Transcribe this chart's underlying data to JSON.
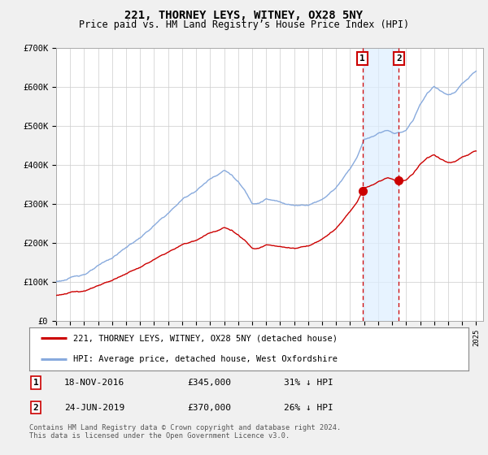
{
  "title": "221, THORNEY LEYS, WITNEY, OX28 5NY",
  "subtitle": "Price paid vs. HM Land Registry’s House Price Index (HPI)",
  "ylim": [
    0,
    700000
  ],
  "yticks": [
    0,
    100000,
    200000,
    300000,
    400000,
    500000,
    600000,
    700000
  ],
  "ytick_labels": [
    "£0",
    "£100K",
    "£200K",
    "£300K",
    "£400K",
    "£500K",
    "£600K",
    "£700K"
  ],
  "xlim_start": 1995.0,
  "xlim_end": 2025.5,
  "line1_color": "#cc0000",
  "line2_color": "#88aadd",
  "vline_color": "#cc0000",
  "shade_color": "#ddeeff",
  "marker1_date": 2016.88,
  "marker2_date": 2019.48,
  "marker1_value": 345000,
  "marker2_value": 370000,
  "sale1_date": "18-NOV-2016",
  "sale1_price": "£345,000",
  "sale1_pct": "31% ↓ HPI",
  "sale2_date": "24-JUN-2019",
  "sale2_price": "£370,000",
  "sale2_pct": "26% ↓ HPI",
  "legend1_label": "221, THORNEY LEYS, WITNEY, OX28 5NY (detached house)",
  "legend2_label": "HPI: Average price, detached house, West Oxfordshire",
  "footnote": "Contains HM Land Registry data © Crown copyright and database right 2024.\nThis data is licensed under the Open Government Licence v3.0.",
  "title_fontsize": 10,
  "subtitle_fontsize": 8.5,
  "background_color": "#f0f0f0",
  "plot_bg_color": "#ffffff"
}
